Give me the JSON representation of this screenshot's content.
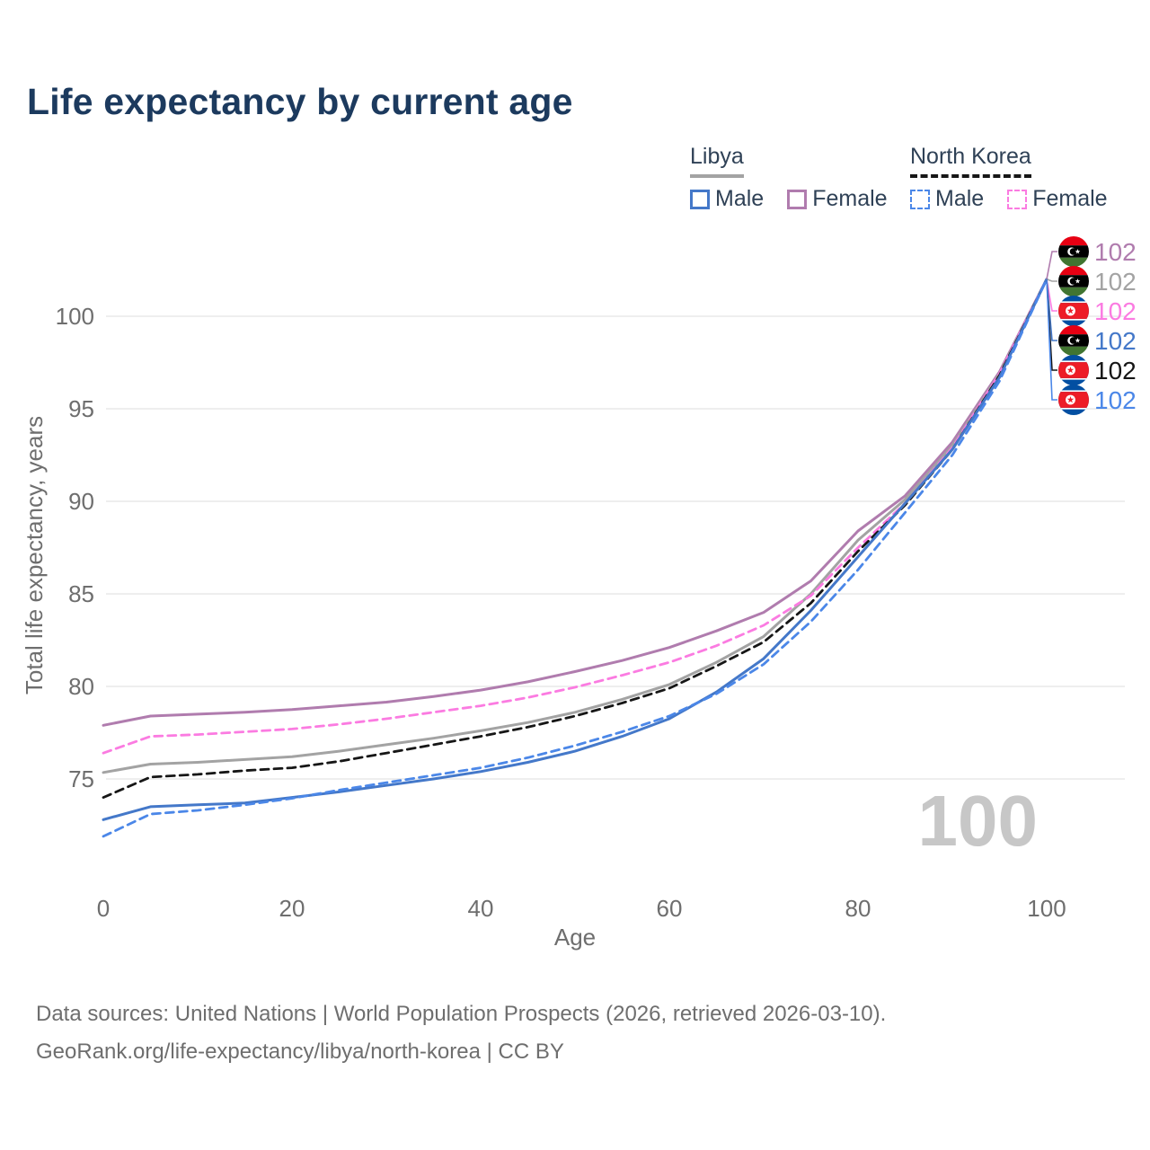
{
  "title": "Life expectancy by current age",
  "legend": {
    "groups": [
      {
        "label": "Libya",
        "line_style": "solid",
        "line_color": "#a3a3a3",
        "items": [
          {
            "label": "Male",
            "color": "#4478c9",
            "dashed": false
          },
          {
            "label": "Female",
            "color": "#b07cae",
            "dashed": false
          }
        ]
      },
      {
        "label": "North Korea",
        "line_style": "dashed",
        "line_color": "#161616",
        "items": [
          {
            "label": "Male",
            "color": "#4b87e8",
            "dashed": true
          },
          {
            "label": "Female",
            "color": "#fb7be1",
            "dashed": true
          }
        ]
      }
    ]
  },
  "chart_data": {
    "type": "line",
    "title": "Life expectancy by current age",
    "xlabel": "Age",
    "ylabel": "Total life expectancy, years",
    "xticks": [
      0,
      20,
      40,
      60,
      80,
      100
    ],
    "yticks": [
      75,
      80,
      85,
      90,
      95,
      100
    ],
    "xlim": [
      0,
      100
    ],
    "ylim": [
      71,
      103
    ],
    "grid": "horizontal",
    "legend_position": "top-right",
    "x": [
      0,
      5,
      10,
      15,
      20,
      25,
      30,
      35,
      40,
      45,
      50,
      55,
      60,
      65,
      70,
      75,
      80,
      85,
      90,
      95,
      100
    ],
    "series": [
      {
        "name": "Libya — Female",
        "country": "Libya",
        "sex": "Female",
        "color": "#b07cae",
        "dash": "solid",
        "values": [
          77.9,
          78.4,
          78.5,
          78.6,
          78.75,
          78.95,
          79.15,
          79.45,
          79.8,
          80.25,
          80.8,
          81.4,
          82.1,
          83.0,
          84.0,
          85.7,
          88.4,
          90.3,
          93.2,
          97.0,
          102
        ]
      },
      {
        "name": "Libya — Both sexes",
        "country": "Libya",
        "sex": "All",
        "color": "#a3a3a3",
        "dash": "solid",
        "values": [
          75.35,
          75.8,
          75.9,
          76.05,
          76.2,
          76.5,
          76.85,
          77.2,
          77.6,
          78.05,
          78.6,
          79.3,
          80.1,
          81.3,
          82.7,
          85.0,
          87.9,
          90.1,
          93.0,
          96.9,
          102
        ]
      },
      {
        "name": "North Korea — Female",
        "country": "North Korea",
        "sex": "Female",
        "color": "#fb7be1",
        "dash": "dashed",
        "values": [
          76.4,
          77.3,
          77.4,
          77.55,
          77.7,
          77.95,
          78.25,
          78.6,
          78.95,
          79.4,
          79.95,
          80.6,
          81.3,
          82.2,
          83.3,
          84.9,
          87.5,
          89.9,
          92.9,
          96.9,
          102
        ]
      },
      {
        "name": "North Korea — Both sexes",
        "country": "North Korea",
        "sex": "All",
        "color": "#161616",
        "dash": "dashed",
        "values": [
          74.0,
          75.1,
          75.25,
          75.45,
          75.6,
          75.95,
          76.4,
          76.85,
          77.3,
          77.8,
          78.4,
          79.1,
          79.9,
          81.1,
          82.4,
          84.5,
          87.3,
          89.8,
          92.8,
          96.8,
          102
        ]
      },
      {
        "name": "Libya — Male",
        "country": "Libya",
        "sex": "Male",
        "color": "#4478c9",
        "dash": "solid",
        "values": [
          72.8,
          73.5,
          73.6,
          73.7,
          74.0,
          74.3,
          74.65,
          75.0,
          75.4,
          75.9,
          76.5,
          77.3,
          78.25,
          79.7,
          81.5,
          84.1,
          87.0,
          89.9,
          92.8,
          96.7,
          102
        ]
      },
      {
        "name": "North Korea — Male",
        "country": "North Korea",
        "sex": "Male",
        "color": "#4b87e8",
        "dash": "dashed",
        "values": [
          71.9,
          73.1,
          73.3,
          73.6,
          73.95,
          74.4,
          74.8,
          75.2,
          75.6,
          76.15,
          76.8,
          77.55,
          78.4,
          79.6,
          81.2,
          83.5,
          86.3,
          89.4,
          92.5,
          96.5,
          102
        ]
      }
    ],
    "end_labels": [
      {
        "flag": "libya",
        "value": "102",
        "color": "#b07cae"
      },
      {
        "flag": "libya",
        "value": "102",
        "color": "#a3a3a3"
      },
      {
        "flag": "north-korea",
        "value": "102",
        "color": "#fb7be1"
      },
      {
        "flag": "libya",
        "value": "102",
        "color": "#4478c9"
      },
      {
        "flag": "north-korea",
        "value": "102",
        "color": "#161616"
      },
      {
        "flag": "north-korea",
        "value": "102",
        "color": "#4b87e8"
      }
    ],
    "watermark": "100"
  },
  "footer": {
    "line1": "Data sources: United Nations | World Population Prospects (2026, retrieved 2026-03-10).",
    "line2": "GeoRank.org/life-expectancy/libya/north-korea | CC BY"
  }
}
